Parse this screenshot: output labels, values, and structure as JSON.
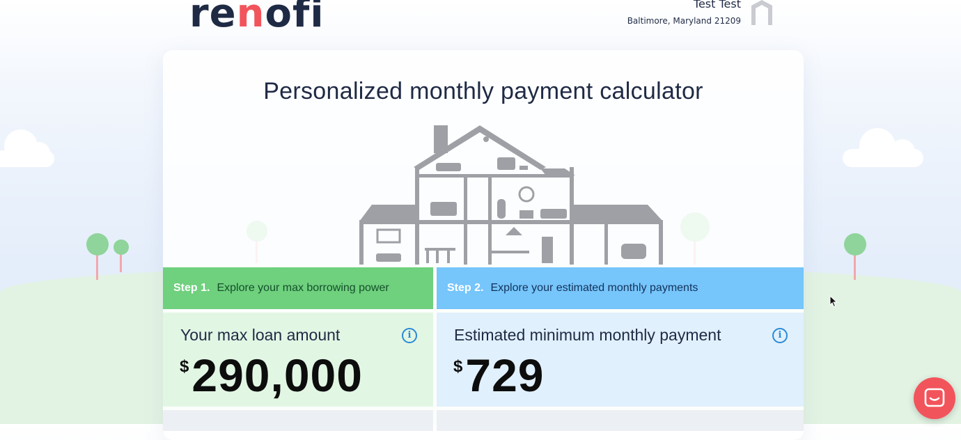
{
  "brand": {
    "logo_pre": "re",
    "logo_n": "n",
    "logo_post": "ofi",
    "primary_color": "#1f2a44",
    "accent_color": "#f2545b"
  },
  "user": {
    "name": "Test Test",
    "location": "Baltimore, Maryland 21209"
  },
  "page": {
    "title": "Personalized monthly payment calculator"
  },
  "steps": [
    {
      "number": "Step 1.",
      "text": "Explore your max borrowing power",
      "color": "#6fd07e"
    },
    {
      "number": "Step 2.",
      "text": "Explore your estimated monthly payments",
      "color": "#76c5fb"
    }
  ],
  "panels": {
    "max_loan": {
      "title": "Your max loan amount",
      "currency": "$",
      "value": "290,000",
      "info_icon": "info-icon"
    },
    "monthly_payment": {
      "title": "Estimated minimum monthly payment",
      "currency": "$",
      "value": "729",
      "info_icon": "info-icon"
    }
  },
  "icons": {
    "chat": "chat-bubble-icon",
    "cursor": "mouse-pointer-icon",
    "avatar": "house-avatar-icon"
  }
}
